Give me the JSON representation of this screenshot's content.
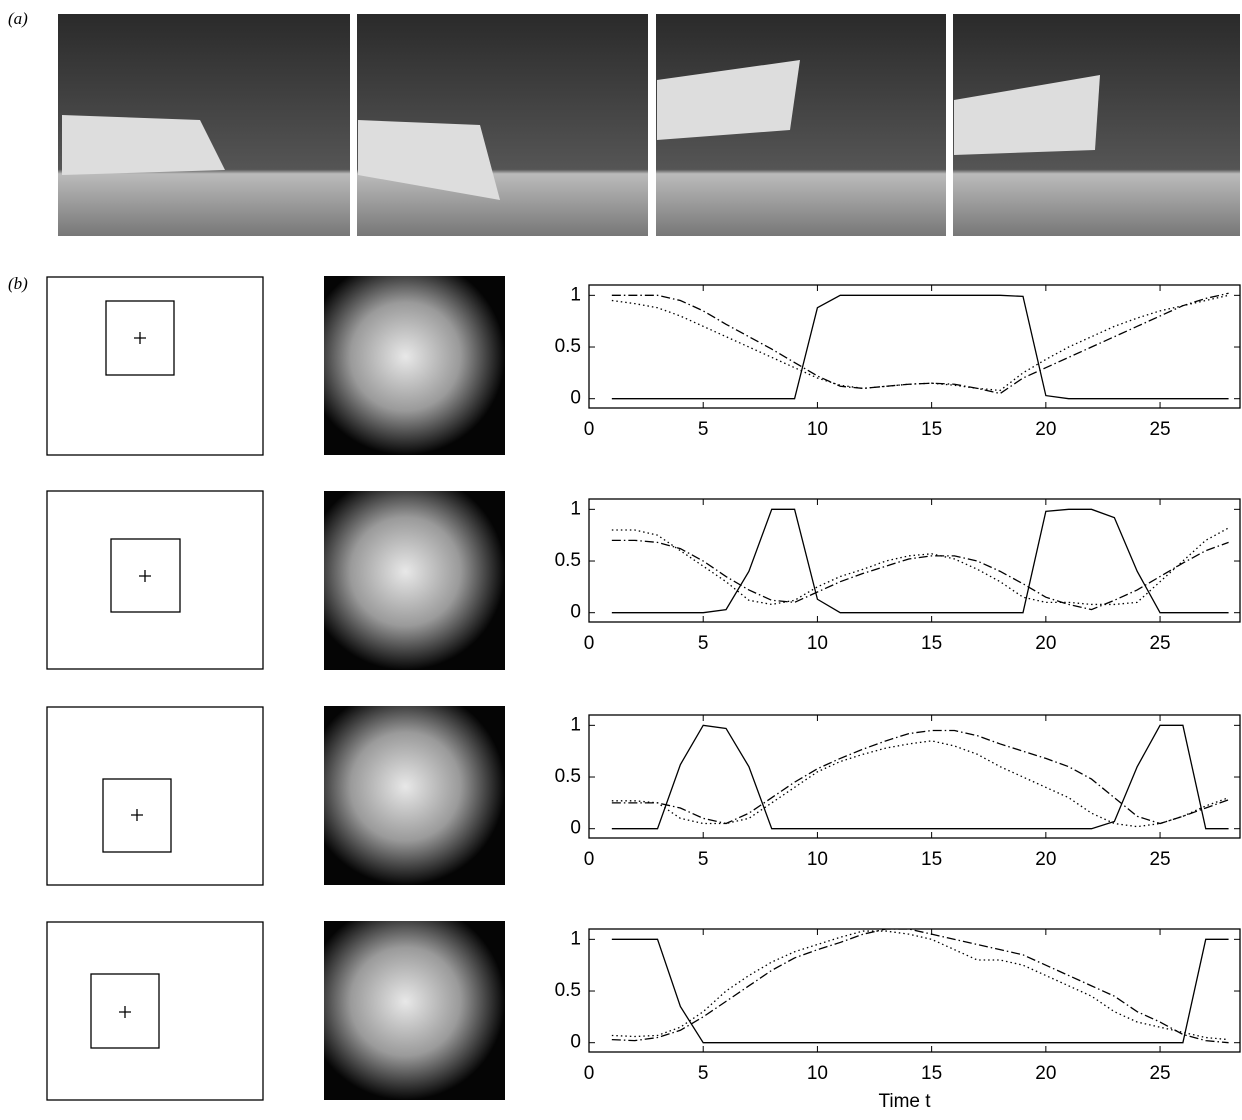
{
  "panel_labels": [
    "(a)",
    "(b)"
  ],
  "chart_data": [
    {
      "type": "line",
      "xlim": [
        0,
        28.5
      ],
      "ylim": [
        -0.09,
        1.1
      ],
      "xticks": [
        0,
        5,
        10,
        15,
        20,
        25
      ],
      "yticks": [
        0,
        0.5,
        1
      ],
      "x": [
        1,
        2,
        3,
        4,
        5,
        6,
        7,
        8,
        9,
        10,
        11,
        12,
        13,
        14,
        15,
        16,
        17,
        18,
        19,
        20,
        21,
        22,
        23,
        24,
        25,
        26,
        27,
        28
      ],
      "series": [
        {
          "color": "#000",
          "style": "solid",
          "values": [
            0,
            0,
            0,
            0,
            0,
            0,
            0,
            0,
            0,
            0.88,
            1,
            1,
            1,
            1,
            1,
            1,
            1,
            1,
            0.99,
            0.03,
            0,
            0,
            0,
            0,
            0,
            0,
            0,
            0
          ]
        },
        {
          "color": "#000",
          "style": "dashdot",
          "values": [
            1,
            1,
            1,
            0.95,
            0.85,
            0.72,
            0.6,
            0.48,
            0.35,
            0.22,
            0.12,
            0.1,
            0.12,
            0.14,
            0.15,
            0.14,
            0.1,
            0.05,
            0.2,
            0.3,
            0.4,
            0.5,
            0.6,
            0.7,
            0.8,
            0.9,
            0.97,
            1.02
          ]
        },
        {
          "color": "#000",
          "style": "dotted",
          "values": [
            0.95,
            0.92,
            0.88,
            0.8,
            0.7,
            0.6,
            0.5,
            0.4,
            0.3,
            0.2,
            0.13,
            0.1,
            0.12,
            0.14,
            0.15,
            0.13,
            0.1,
            0.08,
            0.25,
            0.38,
            0.5,
            0.6,
            0.7,
            0.78,
            0.85,
            0.9,
            0.95,
            1.0
          ]
        }
      ]
    },
    {
      "type": "line",
      "xlim": [
        0,
        28.5
      ],
      "ylim": [
        -0.09,
        1.1
      ],
      "xticks": [
        0,
        5,
        10,
        15,
        20,
        25
      ],
      "yticks": [
        0,
        0.5,
        1
      ],
      "x": [
        1,
        2,
        3,
        4,
        5,
        6,
        7,
        8,
        9,
        10,
        11,
        12,
        13,
        14,
        15,
        16,
        17,
        18,
        19,
        20,
        21,
        22,
        23,
        24,
        25,
        26,
        27,
        28
      ],
      "series": [
        {
          "color": "#000",
          "style": "solid",
          "values": [
            0,
            0,
            0,
            0,
            0,
            0.03,
            0.4,
            1,
            1,
            0.13,
            0,
            0,
            0,
            0,
            0,
            0,
            0,
            0,
            0,
            0.98,
            1,
            1,
            0.92,
            0.4,
            0,
            0,
            0,
            0
          ]
        },
        {
          "color": "#000",
          "style": "dashdot",
          "values": [
            0.7,
            0.7,
            0.68,
            0.62,
            0.5,
            0.35,
            0.22,
            0.12,
            0.1,
            0.2,
            0.3,
            0.38,
            0.45,
            0.52,
            0.55,
            0.55,
            0.5,
            0.4,
            0.28,
            0.15,
            0.08,
            0.03,
            0.12,
            0.22,
            0.35,
            0.48,
            0.6,
            0.68
          ]
        },
        {
          "color": "#000",
          "style": "dotted",
          "values": [
            0.8,
            0.8,
            0.75,
            0.6,
            0.45,
            0.3,
            0.12,
            0.08,
            0.12,
            0.25,
            0.35,
            0.42,
            0.5,
            0.55,
            0.57,
            0.52,
            0.42,
            0.3,
            0.15,
            0.1,
            0.1,
            0.08,
            0.08,
            0.1,
            0.3,
            0.5,
            0.7,
            0.82
          ]
        }
      ]
    },
    {
      "type": "line",
      "xlim": [
        0,
        28.5
      ],
      "ylim": [
        -0.09,
        1.1
      ],
      "xticks": [
        0,
        5,
        10,
        15,
        20,
        25
      ],
      "yticks": [
        0,
        0.5,
        1
      ],
      "x": [
        1,
        2,
        3,
        4,
        5,
        6,
        7,
        8,
        9,
        10,
        11,
        12,
        13,
        14,
        15,
        16,
        17,
        18,
        19,
        20,
        21,
        22,
        23,
        24,
        25,
        26,
        27,
        28
      ],
      "series": [
        {
          "color": "#000",
          "style": "solid",
          "values": [
            0,
            0,
            0,
            0.62,
            1,
            0.97,
            0.6,
            0,
            0,
            0,
            0,
            0,
            0,
            0,
            0,
            0,
            0,
            0,
            0,
            0,
            0,
            0,
            0.07,
            0.6,
            1,
            1,
            0,
            0
          ]
        },
        {
          "color": "#000",
          "style": "dashdot",
          "values": [
            0.25,
            0.25,
            0.25,
            0.2,
            0.1,
            0.05,
            0.15,
            0.3,
            0.45,
            0.58,
            0.68,
            0.77,
            0.85,
            0.92,
            0.95,
            0.95,
            0.9,
            0.82,
            0.75,
            0.68,
            0.6,
            0.48,
            0.3,
            0.12,
            0.05,
            0.12,
            0.2,
            0.28
          ]
        },
        {
          "color": "#000",
          "style": "dotted",
          "values": [
            0.27,
            0.27,
            0.25,
            0.1,
            0.05,
            0.05,
            0.1,
            0.25,
            0.4,
            0.55,
            0.65,
            0.72,
            0.78,
            0.82,
            0.85,
            0.8,
            0.72,
            0.6,
            0.5,
            0.4,
            0.3,
            0.15,
            0.05,
            0.02,
            0.05,
            0.12,
            0.22,
            0.3
          ]
        }
      ]
    },
    {
      "type": "line",
      "xlim": [
        0,
        28.5
      ],
      "ylim": [
        -0.09,
        1.1
      ],
      "xticks": [
        0,
        5,
        10,
        15,
        20,
        25
      ],
      "yticks": [
        0,
        0.5,
        1
      ],
      "xlabel": "Time t",
      "x": [
        1,
        2,
        3,
        4,
        5,
        6,
        7,
        8,
        9,
        10,
        11,
        12,
        13,
        14,
        15,
        16,
        17,
        18,
        19,
        20,
        21,
        22,
        23,
        24,
        25,
        26,
        27,
        28
      ],
      "series": [
        {
          "color": "#000",
          "style": "solid",
          "values": [
            1,
            1,
            1,
            0.35,
            0,
            0,
            0,
            0,
            0,
            0,
            0,
            0,
            0,
            0,
            0,
            0,
            0,
            0,
            0,
            0,
            0,
            0,
            0,
            0,
            0,
            0,
            1,
            1
          ]
        },
        {
          "color": "#000",
          "style": "dashdot",
          "values": [
            0.03,
            0.02,
            0.05,
            0.12,
            0.25,
            0.4,
            0.55,
            0.7,
            0.82,
            0.9,
            0.97,
            1.05,
            1.1,
            1.1,
            1.05,
            1.0,
            0.95,
            0.9,
            0.85,
            0.75,
            0.65,
            0.55,
            0.45,
            0.3,
            0.2,
            0.08,
            0.02,
            0.0
          ]
        },
        {
          "color": "#000",
          "style": "dotted",
          "values": [
            0.07,
            0.06,
            0.07,
            0.15,
            0.3,
            0.5,
            0.65,
            0.78,
            0.88,
            0.95,
            1.02,
            1.08,
            1.08,
            1.05,
            1.0,
            0.9,
            0.8,
            0.8,
            0.75,
            0.65,
            0.55,
            0.45,
            0.3,
            0.2,
            0.15,
            0.1,
            0.05,
            0.03
          ]
        }
      ]
    }
  ]
}
